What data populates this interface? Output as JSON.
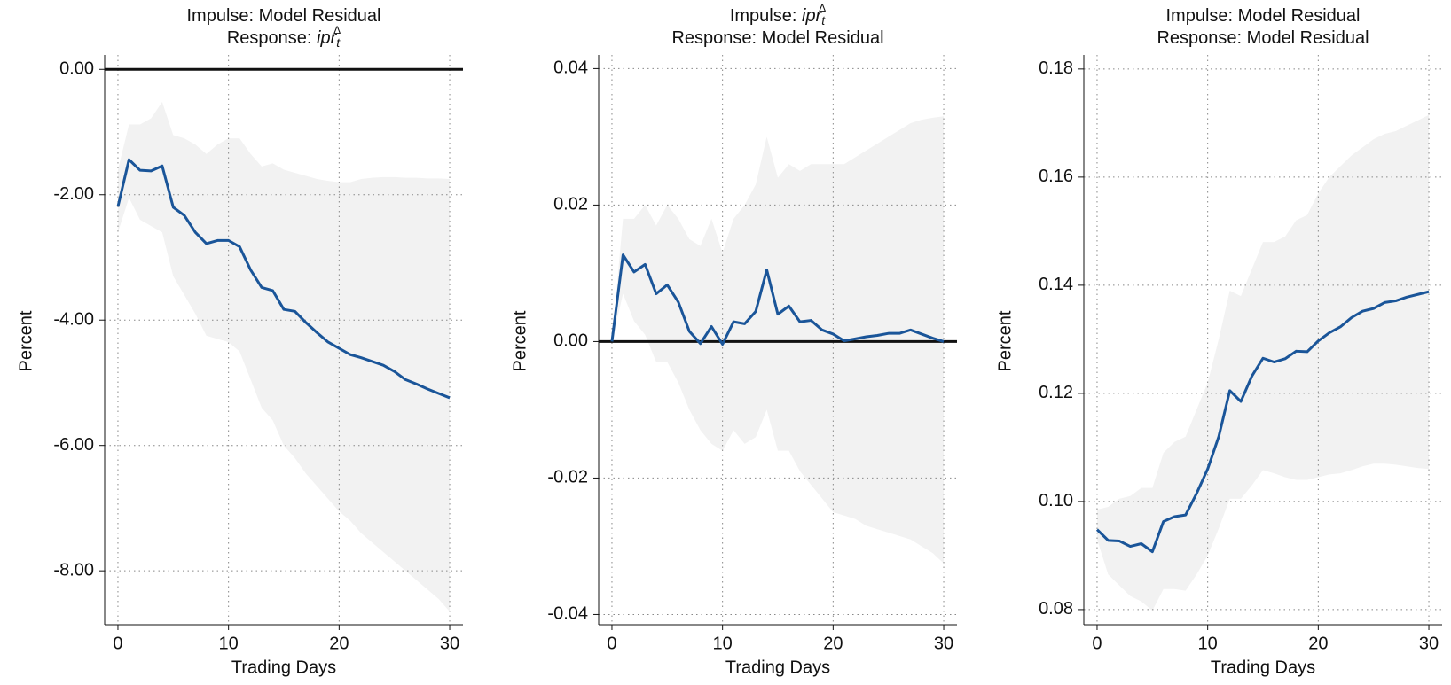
{
  "chart_data": [
    {
      "type": "line",
      "title": [
        [
          {
            "text": "Impulse: Model Residual",
            "style": "normal"
          }
        ],
        [
          {
            "text": "Response: ",
            "style": "normal"
          },
          {
            "text": "ipr",
            "style": "italic"
          },
          {
            "text": "t",
            "style": "sub"
          },
          {
            "text": "Δ",
            "style": "sup"
          }
        ]
      ],
      "xlabel": "Trading Days",
      "ylabel": "Percent",
      "x": [
        0,
        1,
        2,
        3,
        4,
        5,
        6,
        7,
        8,
        9,
        10,
        11,
        12,
        13,
        14,
        15,
        16,
        17,
        18,
        19,
        20,
        21,
        22,
        23,
        24,
        25,
        26,
        27,
        28,
        29,
        30
      ],
      "series": [
        {
          "color": "#1a5599",
          "values": [
            -2.19,
            -1.44,
            -1.61,
            -1.62,
            -1.54,
            -2.2,
            -2.33,
            -2.6,
            -2.78,
            -2.73,
            -2.73,
            -2.83,
            -3.2,
            -3.48,
            -3.53,
            -3.83,
            -3.86,
            -4.04,
            -4.2,
            -4.35,
            -4.45,
            -4.55,
            -4.6,
            -4.66,
            -4.72,
            -4.82,
            -4.95,
            -5.02,
            -5.1,
            -5.17,
            -5.24
          ],
          "upper": [
            -1.6,
            -0.88,
            -0.88,
            -0.78,
            -0.52,
            -1.05,
            -1.1,
            -1.2,
            -1.35,
            -1.2,
            -1.1,
            -1.1,
            -1.35,
            -1.55,
            -1.5,
            -1.6,
            -1.65,
            -1.7,
            -1.75,
            -1.78,
            -1.8,
            -1.8,
            -1.75,
            -1.73,
            -1.72,
            -1.72,
            -1.73,
            -1.73,
            -1.74,
            -1.74,
            -1.75
          ],
          "lower": [
            -2.6,
            -2.05,
            -2.4,
            -2.5,
            -2.6,
            -3.3,
            -3.6,
            -3.9,
            -4.25,
            -4.3,
            -4.35,
            -4.5,
            -4.95,
            -5.4,
            -5.6,
            -6.0,
            -6.2,
            -6.45,
            -6.65,
            -6.85,
            -7.05,
            -7.2,
            -7.4,
            -7.55,
            -7.7,
            -7.85,
            -8.0,
            -8.15,
            -8.3,
            -8.45,
            -8.65
          ],
          "band_color": "#f2f2f2"
        }
      ],
      "xlim": [
        -1.2,
        31.2
      ],
      "xticks": [
        0,
        10,
        20,
        30
      ],
      "ylim": [
        -8.86,
        0.23
      ],
      "yticks": [
        {
          "value": 0,
          "label": "0.00"
        },
        {
          "value": -2,
          "label": "-2.00"
        },
        {
          "value": -4,
          "label": "-4.00"
        },
        {
          "value": -6,
          "label": "-6.00"
        },
        {
          "value": -8,
          "label": "-8.00"
        }
      ],
      "reference_line": 0,
      "grid": true
    },
    {
      "type": "line",
      "title": [
        [
          {
            "text": "Impulse: ",
            "style": "normal"
          },
          {
            "text": "ipr",
            "style": "italic"
          },
          {
            "text": "t",
            "style": "sub"
          },
          {
            "text": "Δ",
            "style": "sup"
          }
        ],
        [
          {
            "text": "Response: Model Residual",
            "style": "normal"
          }
        ]
      ],
      "xlabel": "Trading Days",
      "ylabel": "Percent",
      "x": [
        0,
        1,
        2,
        3,
        4,
        5,
        6,
        7,
        8,
        9,
        10,
        11,
        12,
        13,
        14,
        15,
        16,
        17,
        18,
        19,
        20,
        21,
        22,
        23,
        24,
        25,
        26,
        27,
        28,
        29,
        30
      ],
      "series": [
        {
          "color": "#1a5599",
          "values": [
            0,
            0.0127,
            0.0102,
            0.0113,
            0.007,
            0.0083,
            0.0058,
            0.0015,
            -0.0003,
            0.0022,
            -0.0004,
            0.0029,
            0.0026,
            0.0044,
            0.0105,
            0.004,
            0.0052,
            0.0029,
            0.0031,
            0.0017,
            0.0011,
            0.0001,
            0.0004,
            0.0007,
            0.0009,
            0.0012,
            0.0012,
            0.0017,
            0.0011,
            0.0005,
            0
          ],
          "upper": [
            0,
            0.018,
            0.018,
            0.02,
            0.017,
            0.02,
            0.018,
            0.015,
            0.014,
            0.018,
            0.013,
            0.018,
            0.02,
            0.023,
            0.03,
            0.024,
            0.026,
            0.025,
            0.026,
            0.026,
            0.026,
            0.026,
            0.027,
            0.028,
            0.029,
            0.03,
            0.031,
            0.032,
            0.0325,
            0.0328,
            0.033
          ],
          "lower": [
            0,
            0.007,
            0.003,
            0.001,
            -0.003,
            -0.003,
            -0.006,
            -0.01,
            -0.013,
            -0.015,
            -0.016,
            -0.013,
            -0.015,
            -0.014,
            -0.01,
            -0.016,
            -0.016,
            -0.019,
            -0.021,
            -0.023,
            -0.025,
            -0.0255,
            -0.026,
            -0.027,
            -0.0275,
            -0.028,
            -0.0285,
            -0.029,
            -0.03,
            -0.031,
            -0.0325
          ],
          "band_color": "#f2f2f2"
        }
      ],
      "xlim": [
        -1.2,
        31.2
      ],
      "xticks": [
        0,
        10,
        20,
        30
      ],
      "ylim": [
        -0.0415,
        0.042
      ],
      "yticks": [
        0.04,
        0.02,
        {
          "value": 0,
          "label": "0.00"
        },
        -0.02,
        -0.04
      ],
      "reference_line": 0,
      "grid": true
    },
    {
      "type": "line",
      "title": [
        [
          {
            "text": "Impulse: Model Residual",
            "style": "normal"
          }
        ],
        [
          {
            "text": "Response: Model Residual",
            "style": "normal"
          }
        ]
      ],
      "xlabel": "Trading Days",
      "ylabel": "Percent",
      "x": [
        0,
        1,
        2,
        3,
        4,
        5,
        6,
        7,
        8,
        9,
        10,
        11,
        12,
        13,
        14,
        15,
        16,
        17,
        18,
        19,
        20,
        21,
        22,
        23,
        24,
        25,
        26,
        27,
        28,
        29,
        30
      ],
      "series": [
        {
          "color": "#1a5599",
          "values": [
            0.0948,
            0.0928,
            0.0927,
            0.0917,
            0.0922,
            0.0907,
            0.0963,
            0.0972,
            0.0975,
            0.1015,
            0.106,
            0.112,
            0.1205,
            0.1185,
            0.1232,
            0.1265,
            0.1258,
            0.1264,
            0.1278,
            0.1277,
            0.1297,
            0.1312,
            0.1323,
            0.134,
            0.1352,
            0.1357,
            0.1368,
            0.1371,
            0.1378,
            0.1383,
            0.1388
          ],
          "upper": [
            0.0985,
            0.099,
            0.1005,
            0.101,
            0.1025,
            0.1025,
            0.109,
            0.111,
            0.112,
            0.117,
            0.122,
            0.13,
            0.139,
            0.138,
            0.143,
            0.148,
            0.148,
            0.149,
            0.152,
            0.153,
            0.157,
            0.16,
            0.162,
            0.164,
            0.1655,
            0.167,
            0.168,
            0.1685,
            0.1695,
            0.1705,
            0.1715
          ],
          "lower": [
            0.093,
            0.0865,
            0.0845,
            0.0825,
            0.0815,
            0.0798,
            0.0838,
            0.0838,
            0.0835,
            0.0865,
            0.09,
            0.095,
            0.1005,
            0.1005,
            0.103,
            0.1058,
            0.1052,
            0.1045,
            0.104,
            0.104,
            0.1045,
            0.105,
            0.1052,
            0.1058,
            0.1065,
            0.107,
            0.107,
            0.1068,
            0.1065,
            0.1062,
            0.106
          ],
          "band_color": "#f2f2f2"
        }
      ],
      "xlim": [
        -1.2,
        31.2
      ],
      "xticks": [
        0,
        10,
        20,
        30
      ],
      "ylim": [
        0.0772,
        0.1826
      ],
      "yticks": [
        0.18,
        0.16,
        0.14,
        0.12,
        {
          "value": 0.1,
          "label": "0.10"
        },
        0.08
      ],
      "grid": true
    }
  ]
}
